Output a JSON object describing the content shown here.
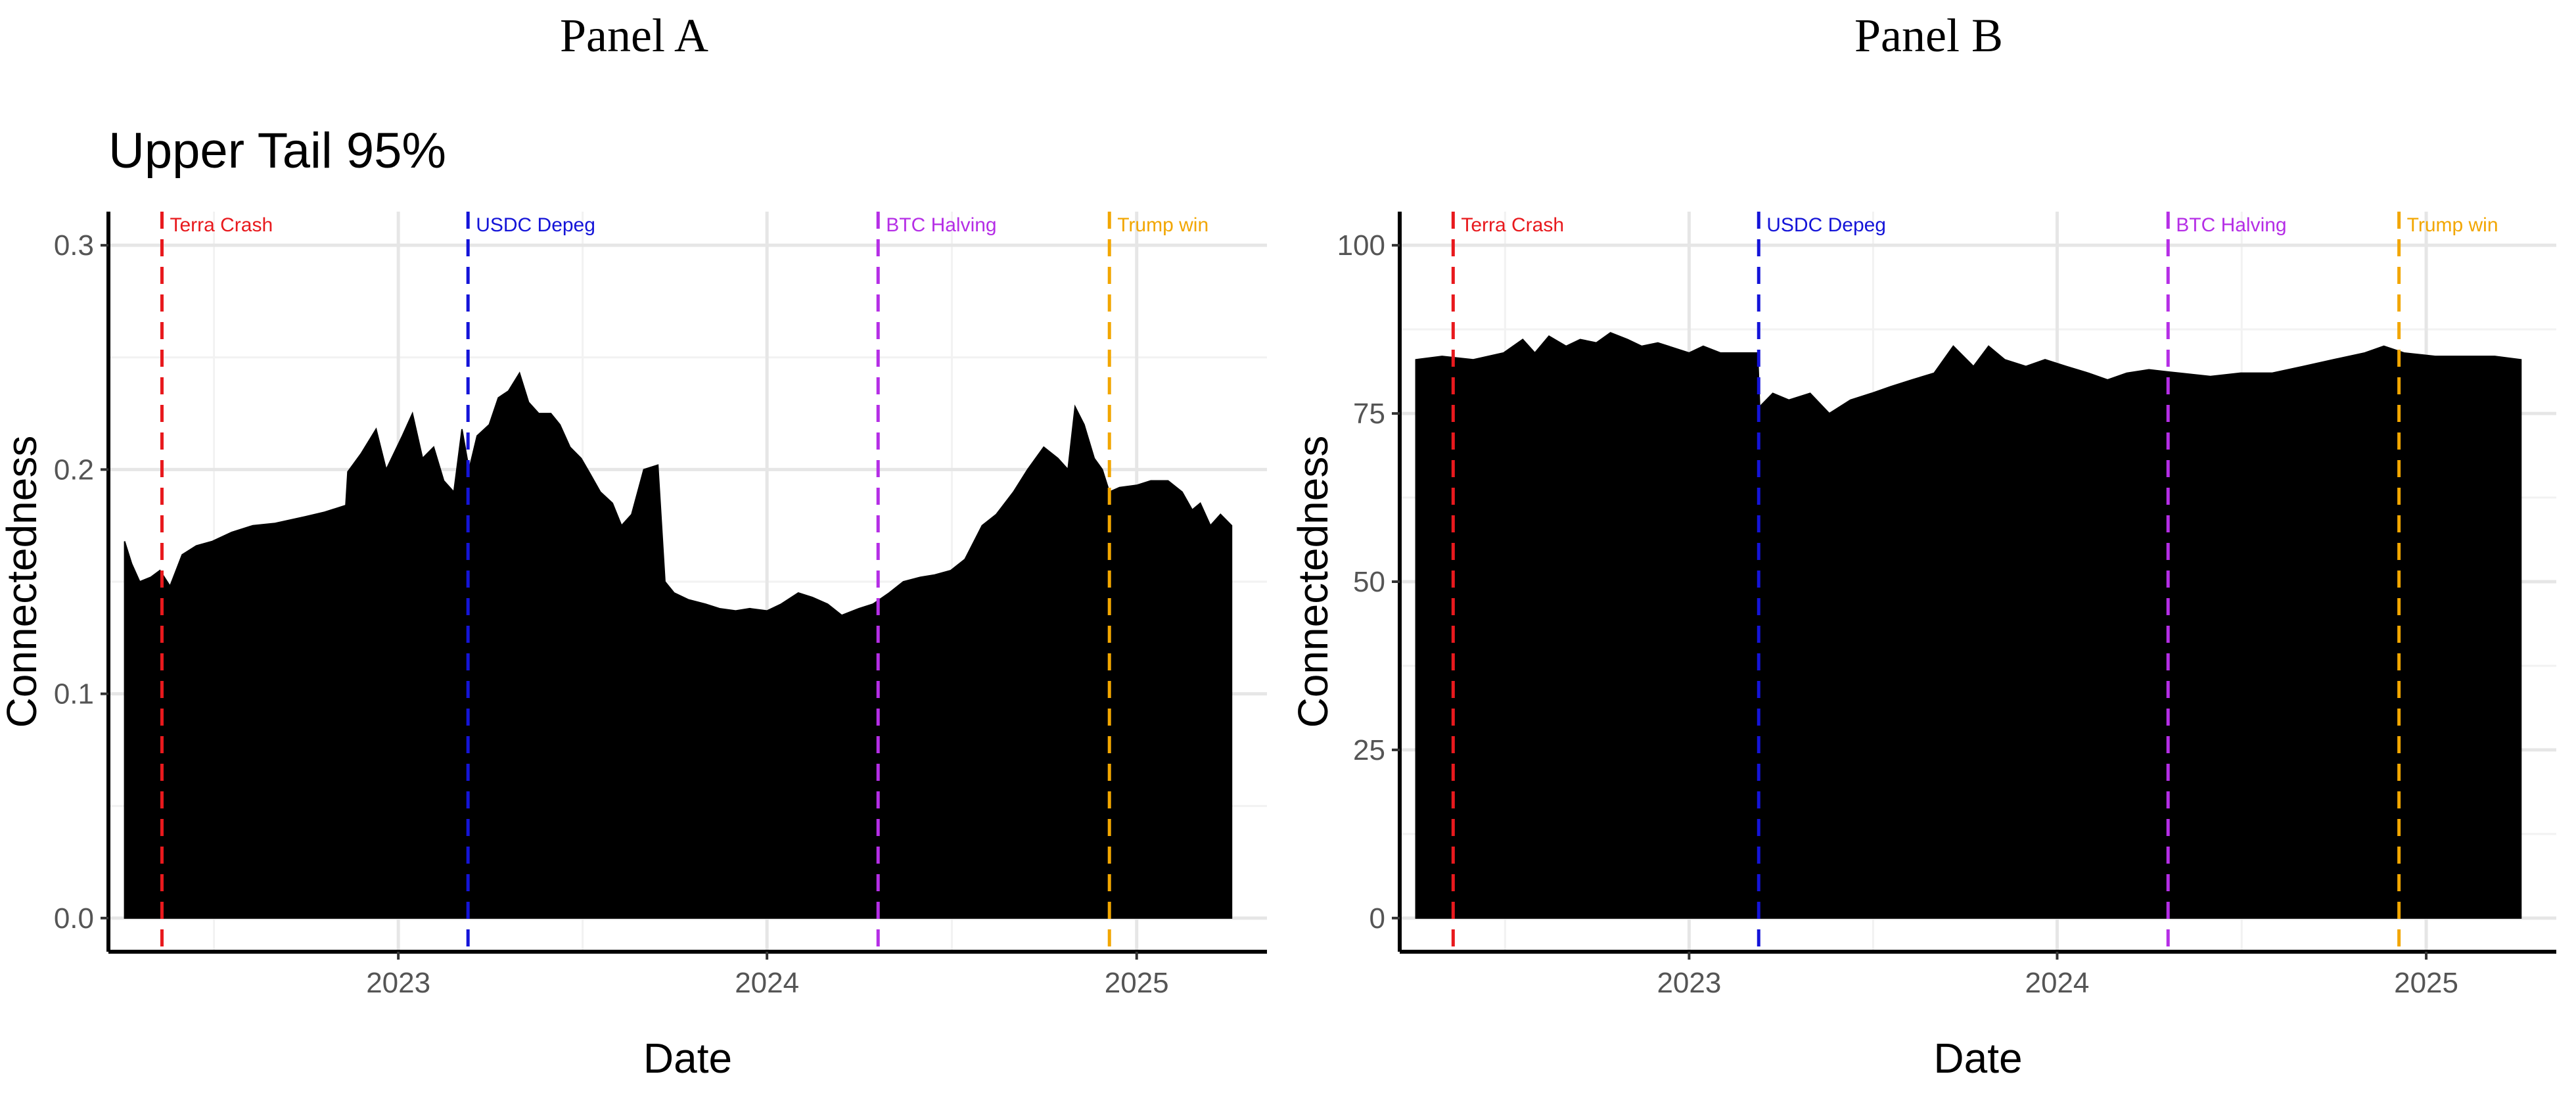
{
  "panels": [
    {
      "title": "Panel A",
      "subtitle": "Upper Tail 95%",
      "chart_data": {
        "type": "area",
        "xlabel": "Date",
        "ylabel": "Connectedness",
        "xlim": [
          "2022-03-20",
          "2025-05-10"
        ],
        "ylim": [
          -0.015,
          0.315
        ],
        "x_ticks": [
          "2023-01-01",
          "2024-01-01",
          "2025-01-01"
        ],
        "x_tick_labels": [
          "2023",
          "2024",
          "2025"
        ],
        "y_ticks": [
          0.0,
          0.1,
          0.2,
          0.3
        ],
        "y_tick_labels": [
          "0.0",
          "0.1",
          "0.2",
          "0.3"
        ],
        "grid": true,
        "fill_color": "#000000",
        "series": [
          {
            "x": [
              "2022-04-05",
              "2022-04-12",
              "2022-04-20",
              "2022-05-01",
              "2022-05-10",
              "2022-05-20",
              "2022-06-01",
              "2022-06-15",
              "2022-07-01",
              "2022-07-20",
              "2022-08-10",
              "2022-09-01",
              "2022-10-01",
              "2022-10-20",
              "2022-11-10",
              "2022-11-12",
              "2022-11-25",
              "2022-12-10",
              "2022-12-20",
              "2023-01-05",
              "2023-01-15",
              "2023-01-25",
              "2023-02-05",
              "2023-02-15",
              "2023-02-25",
              "2023-03-05",
              "2023-03-12",
              "2023-03-20",
              "2023-04-01",
              "2023-04-10",
              "2023-04-20",
              "2023-05-01",
              "2023-05-10",
              "2023-05-20",
              "2023-06-01",
              "2023-06-10",
              "2023-06-20",
              "2023-07-01",
              "2023-07-10",
              "2023-07-20",
              "2023-08-01",
              "2023-08-10",
              "2023-08-20",
              "2023-09-01",
              "2023-09-15",
              "2023-09-22",
              "2023-10-01",
              "2023-10-15",
              "2023-11-01",
              "2023-11-15",
              "2023-12-01",
              "2023-12-15",
              "2024-01-01",
              "2024-01-15",
              "2024-02-01",
              "2024-02-15",
              "2024-03-01",
              "2024-03-15",
              "2024-04-01",
              "2024-04-15",
              "2024-05-01",
              "2024-05-15",
              "2024-06-01",
              "2024-06-15",
              "2024-07-01",
              "2024-07-15",
              "2024-08-01",
              "2024-08-15",
              "2024-09-01",
              "2024-09-15",
              "2024-10-01",
              "2024-10-15",
              "2024-10-25",
              "2024-11-01",
              "2024-11-10",
              "2024-11-20",
              "2024-11-28",
              "2024-12-05",
              "2024-12-15",
              "2025-01-01",
              "2025-01-15",
              "2025-02-01",
              "2025-02-15",
              "2025-02-25",
              "2025-03-05",
              "2025-03-15",
              "2025-03-25",
              "2025-04-05"
            ],
            "values": [
              0.168,
              0.158,
              0.15,
              0.152,
              0.155,
              0.148,
              0.162,
              0.166,
              0.168,
              0.172,
              0.175,
              0.176,
              0.179,
              0.181,
              0.184,
              0.199,
              0.207,
              0.218,
              0.2,
              0.215,
              0.225,
              0.205,
              0.21,
              0.195,
              0.19,
              0.218,
              0.2,
              0.215,
              0.22,
              0.232,
              0.235,
              0.243,
              0.23,
              0.225,
              0.225,
              0.22,
              0.21,
              0.205,
              0.198,
              0.19,
              0.185,
              0.175,
              0.18,
              0.2,
              0.202,
              0.15,
              0.145,
              0.142,
              0.14,
              0.138,
              0.137,
              0.138,
              0.137,
              0.14,
              0.145,
              0.143,
              0.14,
              0.135,
              0.138,
              0.14,
              0.145,
              0.15,
              0.152,
              0.153,
              0.155,
              0.16,
              0.175,
              0.18,
              0.19,
              0.2,
              0.21,
              0.205,
              0.2,
              0.228,
              0.22,
              0.205,
              0.2,
              0.19,
              0.192,
              0.193,
              0.195,
              0.195,
              0.19,
              0.182,
              0.185,
              0.175,
              0.18,
              0.175
            ]
          }
        ],
        "events": [
          {
            "label": "Terra Crash",
            "x": "2022-05-12",
            "color": "#e8191d"
          },
          {
            "label": "USDC Depeg",
            "x": "2023-03-11",
            "color": "#1414d8"
          },
          {
            "label": "BTC Halving",
            "x": "2024-04-20",
            "color": "#b52ee6"
          },
          {
            "label": "Trump win",
            "x": "2024-12-05",
            "color": "#f2a600"
          }
        ]
      }
    },
    {
      "title": "Panel B",
      "subtitle": "",
      "chart_data": {
        "type": "area",
        "xlabel": "Date",
        "ylabel": "Connectedness",
        "xlim": [
          "2022-03-20",
          "2025-05-10"
        ],
        "ylim": [
          -5,
          105
        ],
        "x_ticks": [
          "2023-01-01",
          "2024-01-01",
          "2025-01-01"
        ],
        "x_tick_labels": [
          "2023",
          "2024",
          "2025"
        ],
        "y_ticks": [
          0,
          25,
          50,
          75,
          100
        ],
        "y_tick_labels": [
          "0",
          "25",
          "50",
          "75",
          "100"
        ],
        "grid": true,
        "fill_color": "#000000",
        "series": [
          {
            "x": [
              "2022-04-05",
              "2022-05-01",
              "2022-06-01",
              "2022-07-01",
              "2022-07-20",
              "2022-08-01",
              "2022-08-15",
              "2022-09-01",
              "2022-09-15",
              "2022-10-01",
              "2022-10-15",
              "2022-11-01",
              "2022-11-15",
              "2022-12-01",
              "2023-01-01",
              "2023-01-15",
              "2023-02-01",
              "2023-03-10",
              "2023-03-12",
              "2023-03-25",
              "2023-04-10",
              "2023-05-01",
              "2023-05-20",
              "2023-06-10",
              "2023-07-01",
              "2023-07-20",
              "2023-08-10",
              "2023-09-01",
              "2023-09-20",
              "2023-10-10",
              "2023-10-25",
              "2023-11-10",
              "2023-12-01",
              "2023-12-20",
              "2024-01-10",
              "2024-02-01",
              "2024-02-20",
              "2024-03-10",
              "2024-04-01",
              "2024-05-01",
              "2024-06-01",
              "2024-07-01",
              "2024-08-01",
              "2024-09-01",
              "2024-10-01",
              "2024-11-01",
              "2024-11-20",
              "2024-12-10",
              "2025-01-10",
              "2025-02-10",
              "2025-03-10",
              "2025-04-05"
            ],
            "values": [
              83,
              83.5,
              83,
              84,
              86,
              84,
              86.5,
              85,
              86,
              85.5,
              87,
              86,
              85,
              85.5,
              84,
              85,
              84,
              84,
              76,
              78,
              77,
              78,
              75,
              77,
              78,
              79,
              80,
              81,
              85,
              82,
              85,
              83,
              82,
              83,
              82,
              81,
              80,
              81,
              81.5,
              81,
              80.5,
              81,
              81,
              82,
              83,
              84,
              85,
              84,
              83.5,
              83.5,
              83.5,
              83
            ]
          }
        ],
        "events": [
          {
            "label": "Terra Crash",
            "x": "2022-05-12",
            "color": "#e8191d"
          },
          {
            "label": "USDC Depeg",
            "x": "2023-03-11",
            "color": "#1414d8"
          },
          {
            "label": "BTC Halving",
            "x": "2024-04-20",
            "color": "#b52ee6"
          },
          {
            "label": "Trump win",
            "x": "2024-12-05",
            "color": "#f2a600"
          }
        ]
      }
    }
  ]
}
